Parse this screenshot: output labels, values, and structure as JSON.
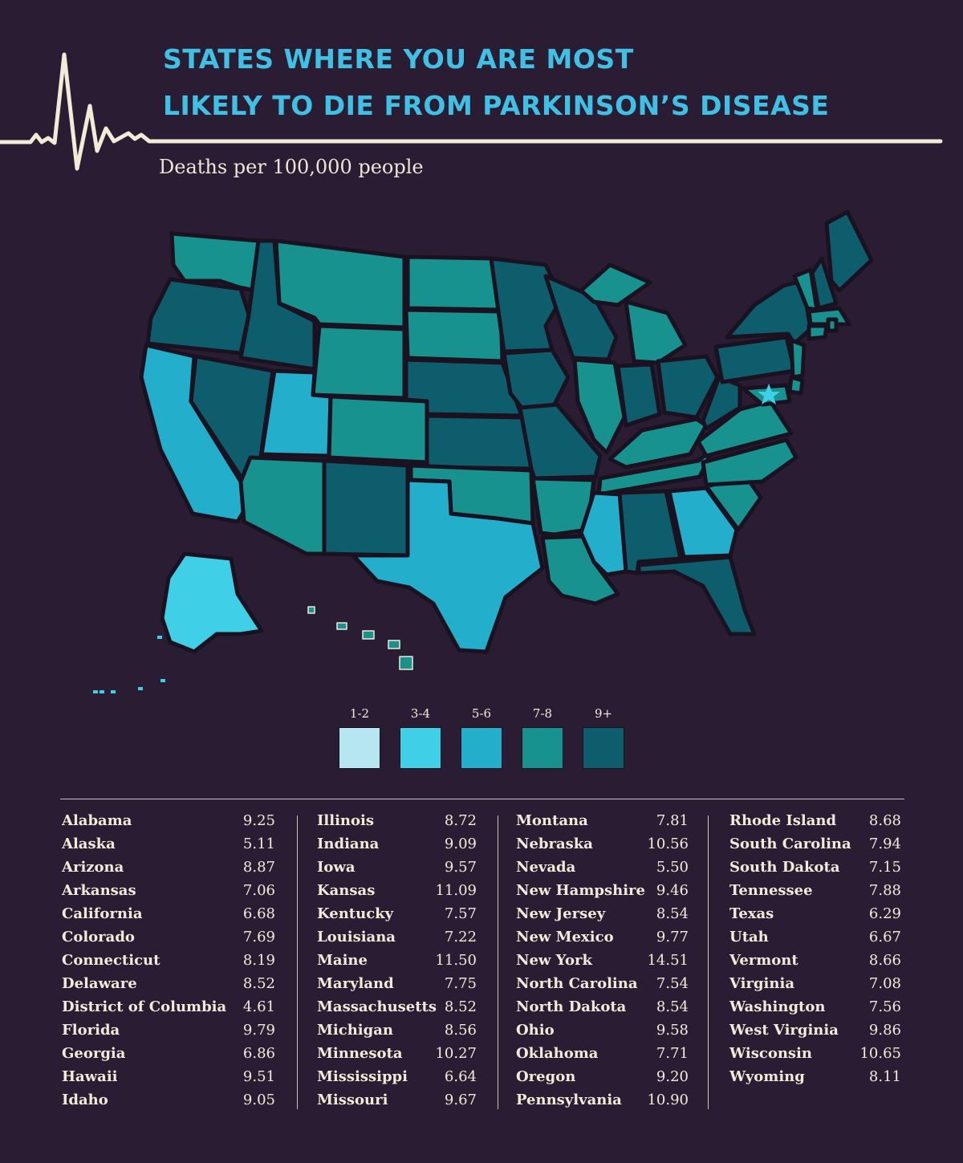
{
  "title": {
    "line1": "STATES WHERE YOU ARE MOST",
    "line2": "LIKELY TO DIE FROM PARKINSON’S DISEASE",
    "subtitle": "Deaths per 100,000 people"
  },
  "colors": {
    "background": "#2a1d33",
    "title": "#3fc0e4",
    "text": "#f3ead8",
    "bin_1_2": "#b6e7f0",
    "bin_3_4": "#3fcfe6",
    "bin_5_6": "#23aecb",
    "bin_7_8": "#17928f",
    "bin_9_plus": "#0e5d6c"
  },
  "legend": [
    {
      "label": "1-2",
      "color": "#b6e7f0"
    },
    {
      "label": "3-4",
      "color": "#3fcfe6"
    },
    {
      "label": "5-6",
      "color": "#23aecb"
    },
    {
      "label": "7-8",
      "color": "#17928f"
    },
    {
      "label": "9+",
      "color": "#0e5d6c"
    }
  ],
  "states": [
    {
      "name": "Alabama",
      "value": "9.25"
    },
    {
      "name": "Alaska",
      "value": "5.11"
    },
    {
      "name": "Arizona",
      "value": "8.87"
    },
    {
      "name": "Arkansas",
      "value": "7.06"
    },
    {
      "name": "California",
      "value": "6.68"
    },
    {
      "name": "Colorado",
      "value": "7.69"
    },
    {
      "name": "Connecticut",
      "value": "8.19"
    },
    {
      "name": "Delaware",
      "value": "8.52"
    },
    {
      "name": "District of Columbia",
      "value": "4.61"
    },
    {
      "name": "Florida",
      "value": "9.79"
    },
    {
      "name": "Georgia",
      "value": "6.86"
    },
    {
      "name": "Hawaii",
      "value": "9.51"
    },
    {
      "name": "Idaho",
      "value": "9.05"
    },
    {
      "name": "Illinois",
      "value": "8.72"
    },
    {
      "name": "Indiana",
      "value": "9.09"
    },
    {
      "name": "Iowa",
      "value": "9.57"
    },
    {
      "name": "Kansas",
      "value": "11.09"
    },
    {
      "name": "Kentucky",
      "value": "7.57"
    },
    {
      "name": "Louisiana",
      "value": "7.22"
    },
    {
      "name": "Maine",
      "value": "11.50"
    },
    {
      "name": "Maryland",
      "value": "7.75"
    },
    {
      "name": "Massachusetts",
      "value": "8.52"
    },
    {
      "name": "Michigan",
      "value": "8.56"
    },
    {
      "name": "Minnesota",
      "value": "10.27"
    },
    {
      "name": "Mississippi",
      "value": "6.64"
    },
    {
      "name": "Missouri",
      "value": "9.67"
    },
    {
      "name": "Montana",
      "value": "7.81"
    },
    {
      "name": "Nebraska",
      "value": "10.56"
    },
    {
      "name": "Nevada",
      "value": "5.50"
    },
    {
      "name": "New Hampshire",
      "value": "9.46"
    },
    {
      "name": "New Jersey",
      "value": "8.54"
    },
    {
      "name": "New Mexico",
      "value": "9.77"
    },
    {
      "name": "New York",
      "value": "14.51"
    },
    {
      "name": "North Carolina",
      "value": "7.54"
    },
    {
      "name": "North Dakota",
      "value": "8.54"
    },
    {
      "name": "Ohio",
      "value": "9.58"
    },
    {
      "name": "Oklahoma",
      "value": "7.71"
    },
    {
      "name": "Oregon",
      "value": "9.20"
    },
    {
      "name": "Pennsylvania",
      "value": "10.90"
    },
    {
      "name": "Rhode Island",
      "value": "8.68"
    },
    {
      "name": "South Carolina",
      "value": "7.94"
    },
    {
      "name": "South Dakota",
      "value": "7.15"
    },
    {
      "name": "Tennessee",
      "value": "7.88"
    },
    {
      "name": "Texas",
      "value": "6.29"
    },
    {
      "name": "Utah",
      "value": "6.67"
    },
    {
      "name": "Vermont",
      "value": "8.66"
    },
    {
      "name": "Virginia",
      "value": "7.08"
    },
    {
      "name": "Washington",
      "value": "7.56"
    },
    {
      "name": "West Virginia",
      "value": "9.86"
    },
    {
      "name": "Wisconsin",
      "value": "10.65"
    },
    {
      "name": "Wyoming",
      "value": "8.11"
    }
  ]
}
